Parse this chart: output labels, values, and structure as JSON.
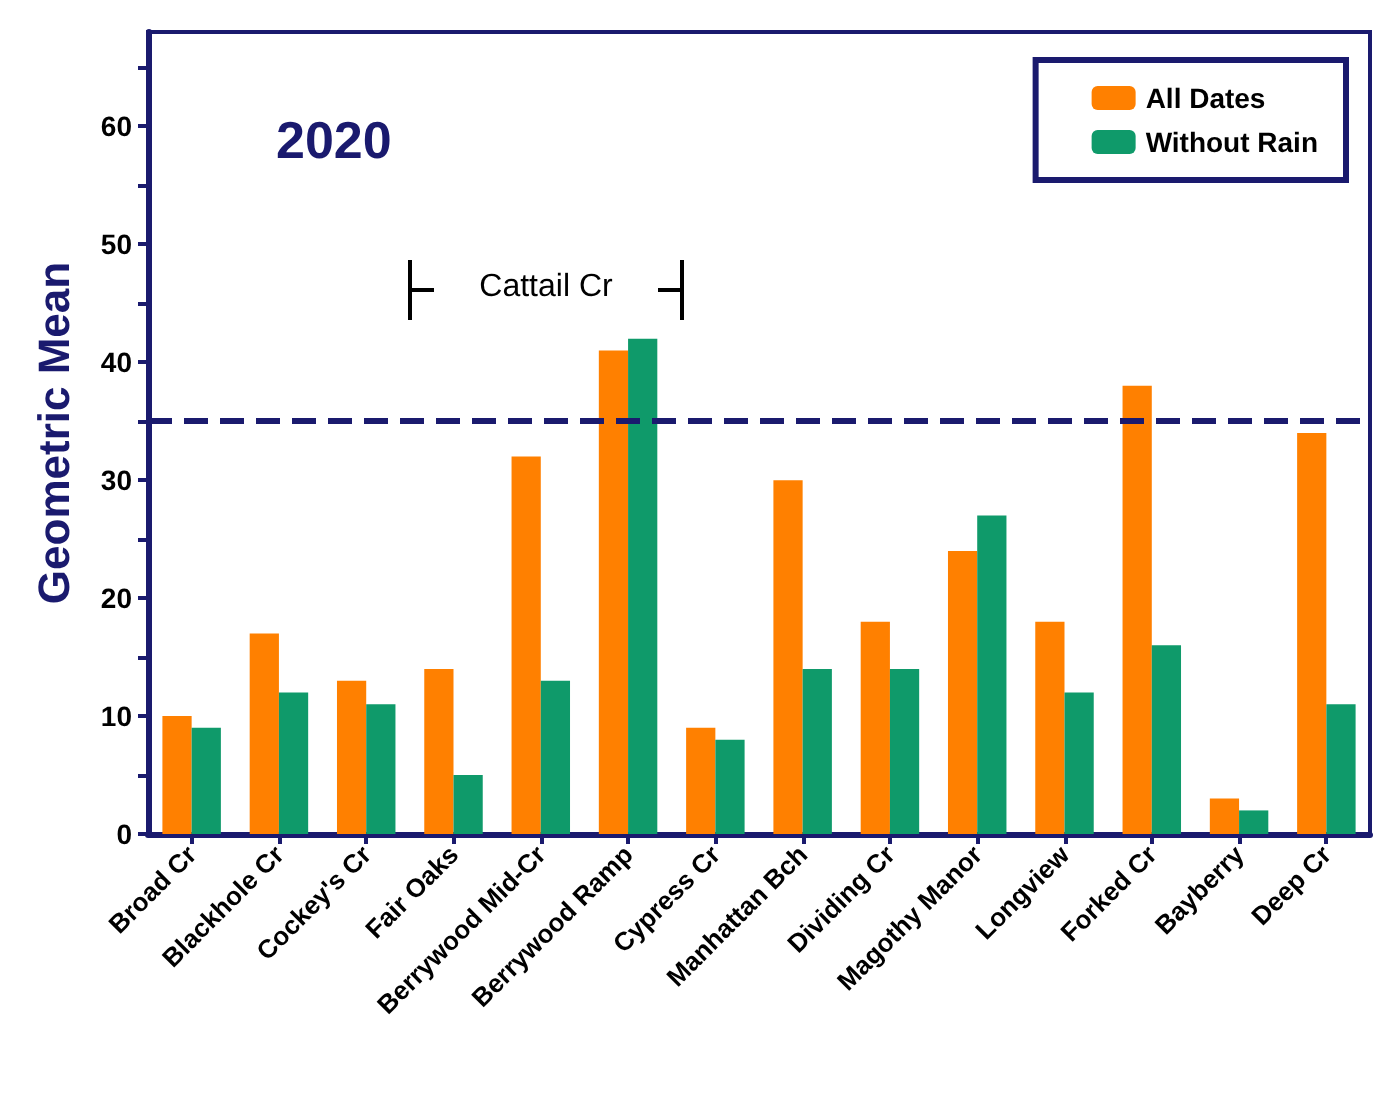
{
  "chart_data": {
    "type": "bar",
    "title": "2020",
    "ylabel": "Geometric Mean",
    "categories": [
      "Broad Cr",
      "Blackhole Cr",
      "Cockey's Cr",
      "Fair Oaks",
      "Berrywood Mid-Cr",
      "Berrywood Ramp",
      "Cypress Cr",
      "Manhattan Bch",
      "Dividing Cr",
      "Magothy Manor",
      "Longview",
      "Forked Cr",
      "Bayberry",
      "Deep Cr"
    ],
    "series": [
      {
        "name": "All Dates",
        "color": "#ff8000",
        "values": [
          10,
          17,
          13,
          14,
          32,
          41,
          9,
          30,
          18,
          24,
          18,
          38,
          3,
          34
        ]
      },
      {
        "name": "Without Rain",
        "color": "#0f9a6a",
        "values": [
          9,
          12,
          11,
          5,
          13,
          42,
          8,
          14,
          14,
          27,
          12,
          16,
          2,
          11
        ]
      }
    ],
    "ylim": [
      0,
      68
    ],
    "yticks": [
      0,
      {
        "value": 5,
        "label": null
      },
      10,
      {
        "value": 15,
        "label": null
      },
      20,
      {
        "value": 25,
        "label": null
      },
      30,
      {
        "value": 35,
        "label": null
      },
      40,
      {
        "value": 45,
        "label": null
      },
      50,
      {
        "value": 55,
        "label": null
      },
      60,
      {
        "value": 65,
        "label": null
      }
    ],
    "ref_lines": [
      {
        "axis": "y",
        "value": 35,
        "color": "#1a1a6e",
        "line_style": "dashed"
      }
    ],
    "annotations": [
      "Cattail Cr"
    ],
    "legend": "top right",
    "grid": false
  }
}
